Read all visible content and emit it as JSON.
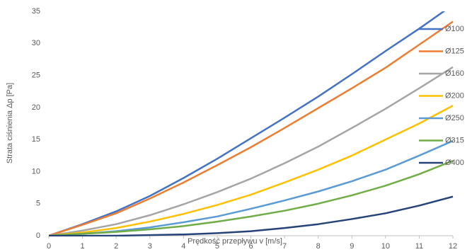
{
  "chart_data": {
    "type": "line",
    "x_label": "Prędkość przepływu v [m/s]",
    "y_label": "Strata ciśnienia Δp [Pa]",
    "x": [
      0,
      1,
      2,
      3,
      4,
      5,
      6,
      7,
      8,
      9,
      10,
      11,
      12
    ],
    "xlim": [
      0,
      12
    ],
    "xticks": [
      0,
      1,
      2,
      3,
      4,
      5,
      6,
      7,
      8,
      9,
      10,
      11,
      12
    ],
    "ylim": [
      0,
      35
    ],
    "yticks": [
      0,
      5,
      10,
      15,
      20,
      25,
      30,
      35
    ],
    "legend": "right",
    "series": [
      {
        "name": "Ø100",
        "color": "#4472c4",
        "values": [
          0,
          1.8,
          3.8,
          6.2,
          9,
          12,
          15.2,
          18.4,
          21.7,
          25.2,
          28.8,
          32.3,
          36
        ]
      },
      {
        "name": "Ø125",
        "color": "#ed7d31",
        "values": [
          0,
          1.7,
          3.5,
          5.8,
          8.3,
          11,
          13.8,
          16.8,
          19.9,
          23,
          26.2,
          29.8,
          33.4
        ]
      },
      {
        "name": "Ø160",
        "color": "#a5a5a5",
        "values": [
          0,
          0.8,
          1.8,
          3.2,
          4.9,
          6.8,
          8.9,
          11.3,
          13.9,
          16.8,
          19.8,
          23,
          26.3
        ]
      },
      {
        "name": "Ø200",
        "color": "#ffc000",
        "values": [
          0,
          0.5,
          1.2,
          2.2,
          3.4,
          4.8,
          6.4,
          8.3,
          10.3,
          12.5,
          15,
          17.5,
          20.3
        ]
      },
      {
        "name": "Ø250",
        "color": "#5b9bd5",
        "values": [
          0,
          0.3,
          0.7,
          1.3,
          2.1,
          3,
          4.2,
          5.5,
          6.9,
          8.5,
          10.3,
          12.5,
          14.8
        ]
      },
      {
        "name": "Ø315",
        "color": "#70ad47",
        "values": [
          0,
          0.3,
          0.6,
          1,
          1.5,
          2.2,
          3,
          3.9,
          5,
          6.3,
          7.8,
          9.6,
          11.7
        ]
      },
      {
        "name": "Ø400",
        "color": "#264478",
        "values": [
          0,
          0,
          0,
          0.1,
          0.2,
          0.4,
          0.7,
          1.2,
          1.8,
          2.6,
          3.5,
          4.7,
          6.1
        ]
      }
    ]
  }
}
